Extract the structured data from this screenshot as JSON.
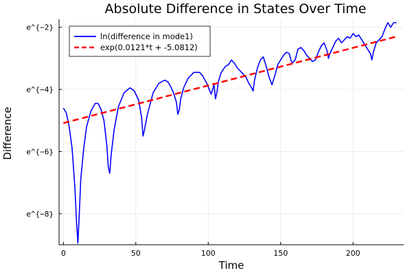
{
  "chart_data": {
    "type": "line",
    "title": "Absolute Difference in States Over Time",
    "xlabel": "Time",
    "ylabel": "Difference",
    "xlim": [
      -3,
      235
    ],
    "ylim": [
      -9.0,
      -1.74
    ],
    "xticks": [
      0,
      50,
      100,
      150,
      200
    ],
    "xtick_labels": [
      "0",
      "50",
      "100",
      "150",
      "200"
    ],
    "yticks": [
      -8,
      -6,
      -4,
      -2
    ],
    "ytick_labels": [
      "e^{−8}",
      "e^{−6}",
      "e^{−4}",
      "e^{−2}"
    ],
    "y_scale_note": "natural log",
    "grid": true,
    "legend_position": "top-left",
    "series": [
      {
        "name": "ln(difference in mode1)",
        "color": "#0000ff",
        "style": "solid",
        "x": [
          0,
          2,
          4,
          6,
          8,
          9,
          10,
          11,
          12,
          14,
          16,
          19,
          22,
          24,
          26,
          28,
          30,
          31,
          32,
          33,
          35,
          38,
          42,
          46,
          49,
          52,
          54,
          55,
          56,
          58,
          62,
          66,
          70,
          72,
          74,
          76,
          78,
          79,
          80,
          81,
          83,
          86,
          90,
          94,
          96,
          99,
          102,
          104,
          105,
          106,
          107,
          109,
          112,
          114,
          116,
          118,
          120,
          123,
          126,
          128,
          130,
          131,
          132,
          134,
          136,
          138,
          140,
          142,
          144,
          146,
          148,
          150,
          152,
          154,
          156,
          157,
          158,
          160,
          162,
          164,
          166,
          168,
          170,
          172,
          174,
          176,
          178,
          180,
          182,
          183,
          184,
          186,
          188,
          190,
          192,
          194,
          196,
          198,
          200,
          202,
          204,
          206,
          208,
          210,
          212,
          213,
          214,
          216,
          218,
          220,
          222,
          224,
          226,
          228,
          230
        ],
        "y": [
          -4.6,
          -4.75,
          -5.2,
          -5.9,
          -7.2,
          -8.2,
          -8.95,
          -8.0,
          -6.9,
          -5.9,
          -5.2,
          -4.7,
          -4.45,
          -4.45,
          -4.65,
          -5.0,
          -5.8,
          -6.5,
          -6.7,
          -6.1,
          -5.3,
          -4.55,
          -4.1,
          -3.95,
          -4.05,
          -4.35,
          -4.9,
          -5.5,
          -5.3,
          -4.8,
          -4.1,
          -3.8,
          -3.7,
          -3.75,
          -3.9,
          -4.1,
          -4.4,
          -4.8,
          -4.65,
          -4.3,
          -3.95,
          -3.65,
          -3.45,
          -3.45,
          -3.55,
          -3.8,
          -4.15,
          -3.85,
          -4.3,
          -4.1,
          -3.75,
          -3.45,
          -3.25,
          -3.2,
          -3.05,
          -3.15,
          -3.3,
          -3.45,
          -3.6,
          -3.8,
          -3.95,
          -4.05,
          -3.7,
          -3.3,
          -3.05,
          -2.95,
          -3.25,
          -3.6,
          -3.85,
          -3.55,
          -3.2,
          -3.05,
          -2.9,
          -2.8,
          -2.85,
          -3.05,
          -3.15,
          -3.05,
          -2.7,
          -2.65,
          -2.75,
          -2.9,
          -3.0,
          -3.1,
          -3.05,
          -2.8,
          -2.6,
          -2.5,
          -2.75,
          -3.0,
          -2.85,
          -2.65,
          -2.45,
          -2.35,
          -2.5,
          -2.4,
          -2.3,
          -2.35,
          -2.2,
          -2.3,
          -2.25,
          -2.4,
          -2.55,
          -2.7,
          -2.85,
          -3.05,
          -2.8,
          -2.5,
          -2.4,
          -2.3,
          -2.05,
          -1.85,
          -2.0,
          -1.85,
          -1.85
        ]
      },
      {
        "name": "exp(0.0121*t + -5.0812)",
        "color": "#ff0000",
        "style": "dashed",
        "x": [
          0,
          230
        ],
        "y": [
          -5.0812,
          -2.2982
        ]
      }
    ]
  }
}
